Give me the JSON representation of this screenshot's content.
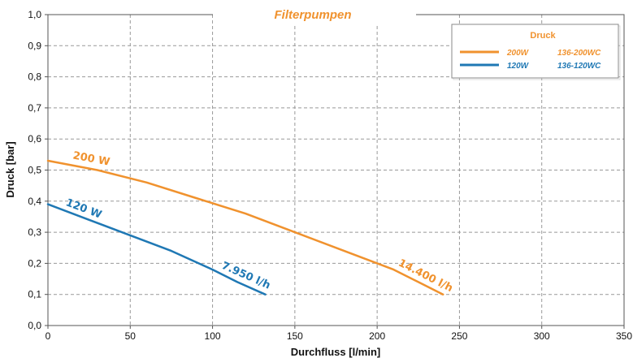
{
  "chart_data": {
    "type": "line",
    "title": "Filterpumpen",
    "xlabel": "Durchfluss [l/min]",
    "ylabel": "Druck [bar]",
    "xlim": [
      0,
      350
    ],
    "ylim": [
      0,
      1.0
    ],
    "x_ticks": [
      0,
      50,
      100,
      150,
      200,
      250,
      300,
      350
    ],
    "x_tick_labels": [
      "0",
      "50",
      "100",
      "150",
      "200",
      "250",
      "300",
      "350"
    ],
    "y_ticks": [
      0,
      0.1,
      0.2,
      0.3,
      0.4,
      0.5,
      0.6,
      0.7,
      0.8,
      0.9,
      1.0
    ],
    "y_tick_labels": [
      "0,0",
      "0,1",
      "0,2",
      "0,3",
      "0,4",
      "0,5",
      "0,6",
      "0,7",
      "0,8",
      "0,9",
      "1,0"
    ],
    "grid": true,
    "legend": {
      "title": "Druck",
      "position": "top-right",
      "entries": [
        {
          "label": "200W",
          "model": "136-200WC",
          "color": "#f0922e"
        },
        {
          "label": "120W",
          "model": "136-120WC",
          "color": "#1f78b4"
        }
      ]
    },
    "series": [
      {
        "color": "#f0922e",
        "curve_label": "200 W",
        "end_label": "14.400 l/h",
        "x": [
          0,
          30,
          60,
          90,
          120,
          150,
          180,
          210,
          225,
          240
        ],
        "y": [
          0.53,
          0.5,
          0.46,
          0.41,
          0.36,
          0.3,
          0.24,
          0.18,
          0.14,
          0.1
        ]
      },
      {
        "color": "#1f78b4",
        "curve_label": "120 W",
        "end_label": "7.950 l/h",
        "x": [
          0,
          25,
          50,
          75,
          100,
          115,
          132
        ],
        "y": [
          0.39,
          0.34,
          0.29,
          0.24,
          0.18,
          0.14,
          0.1
        ]
      }
    ]
  }
}
